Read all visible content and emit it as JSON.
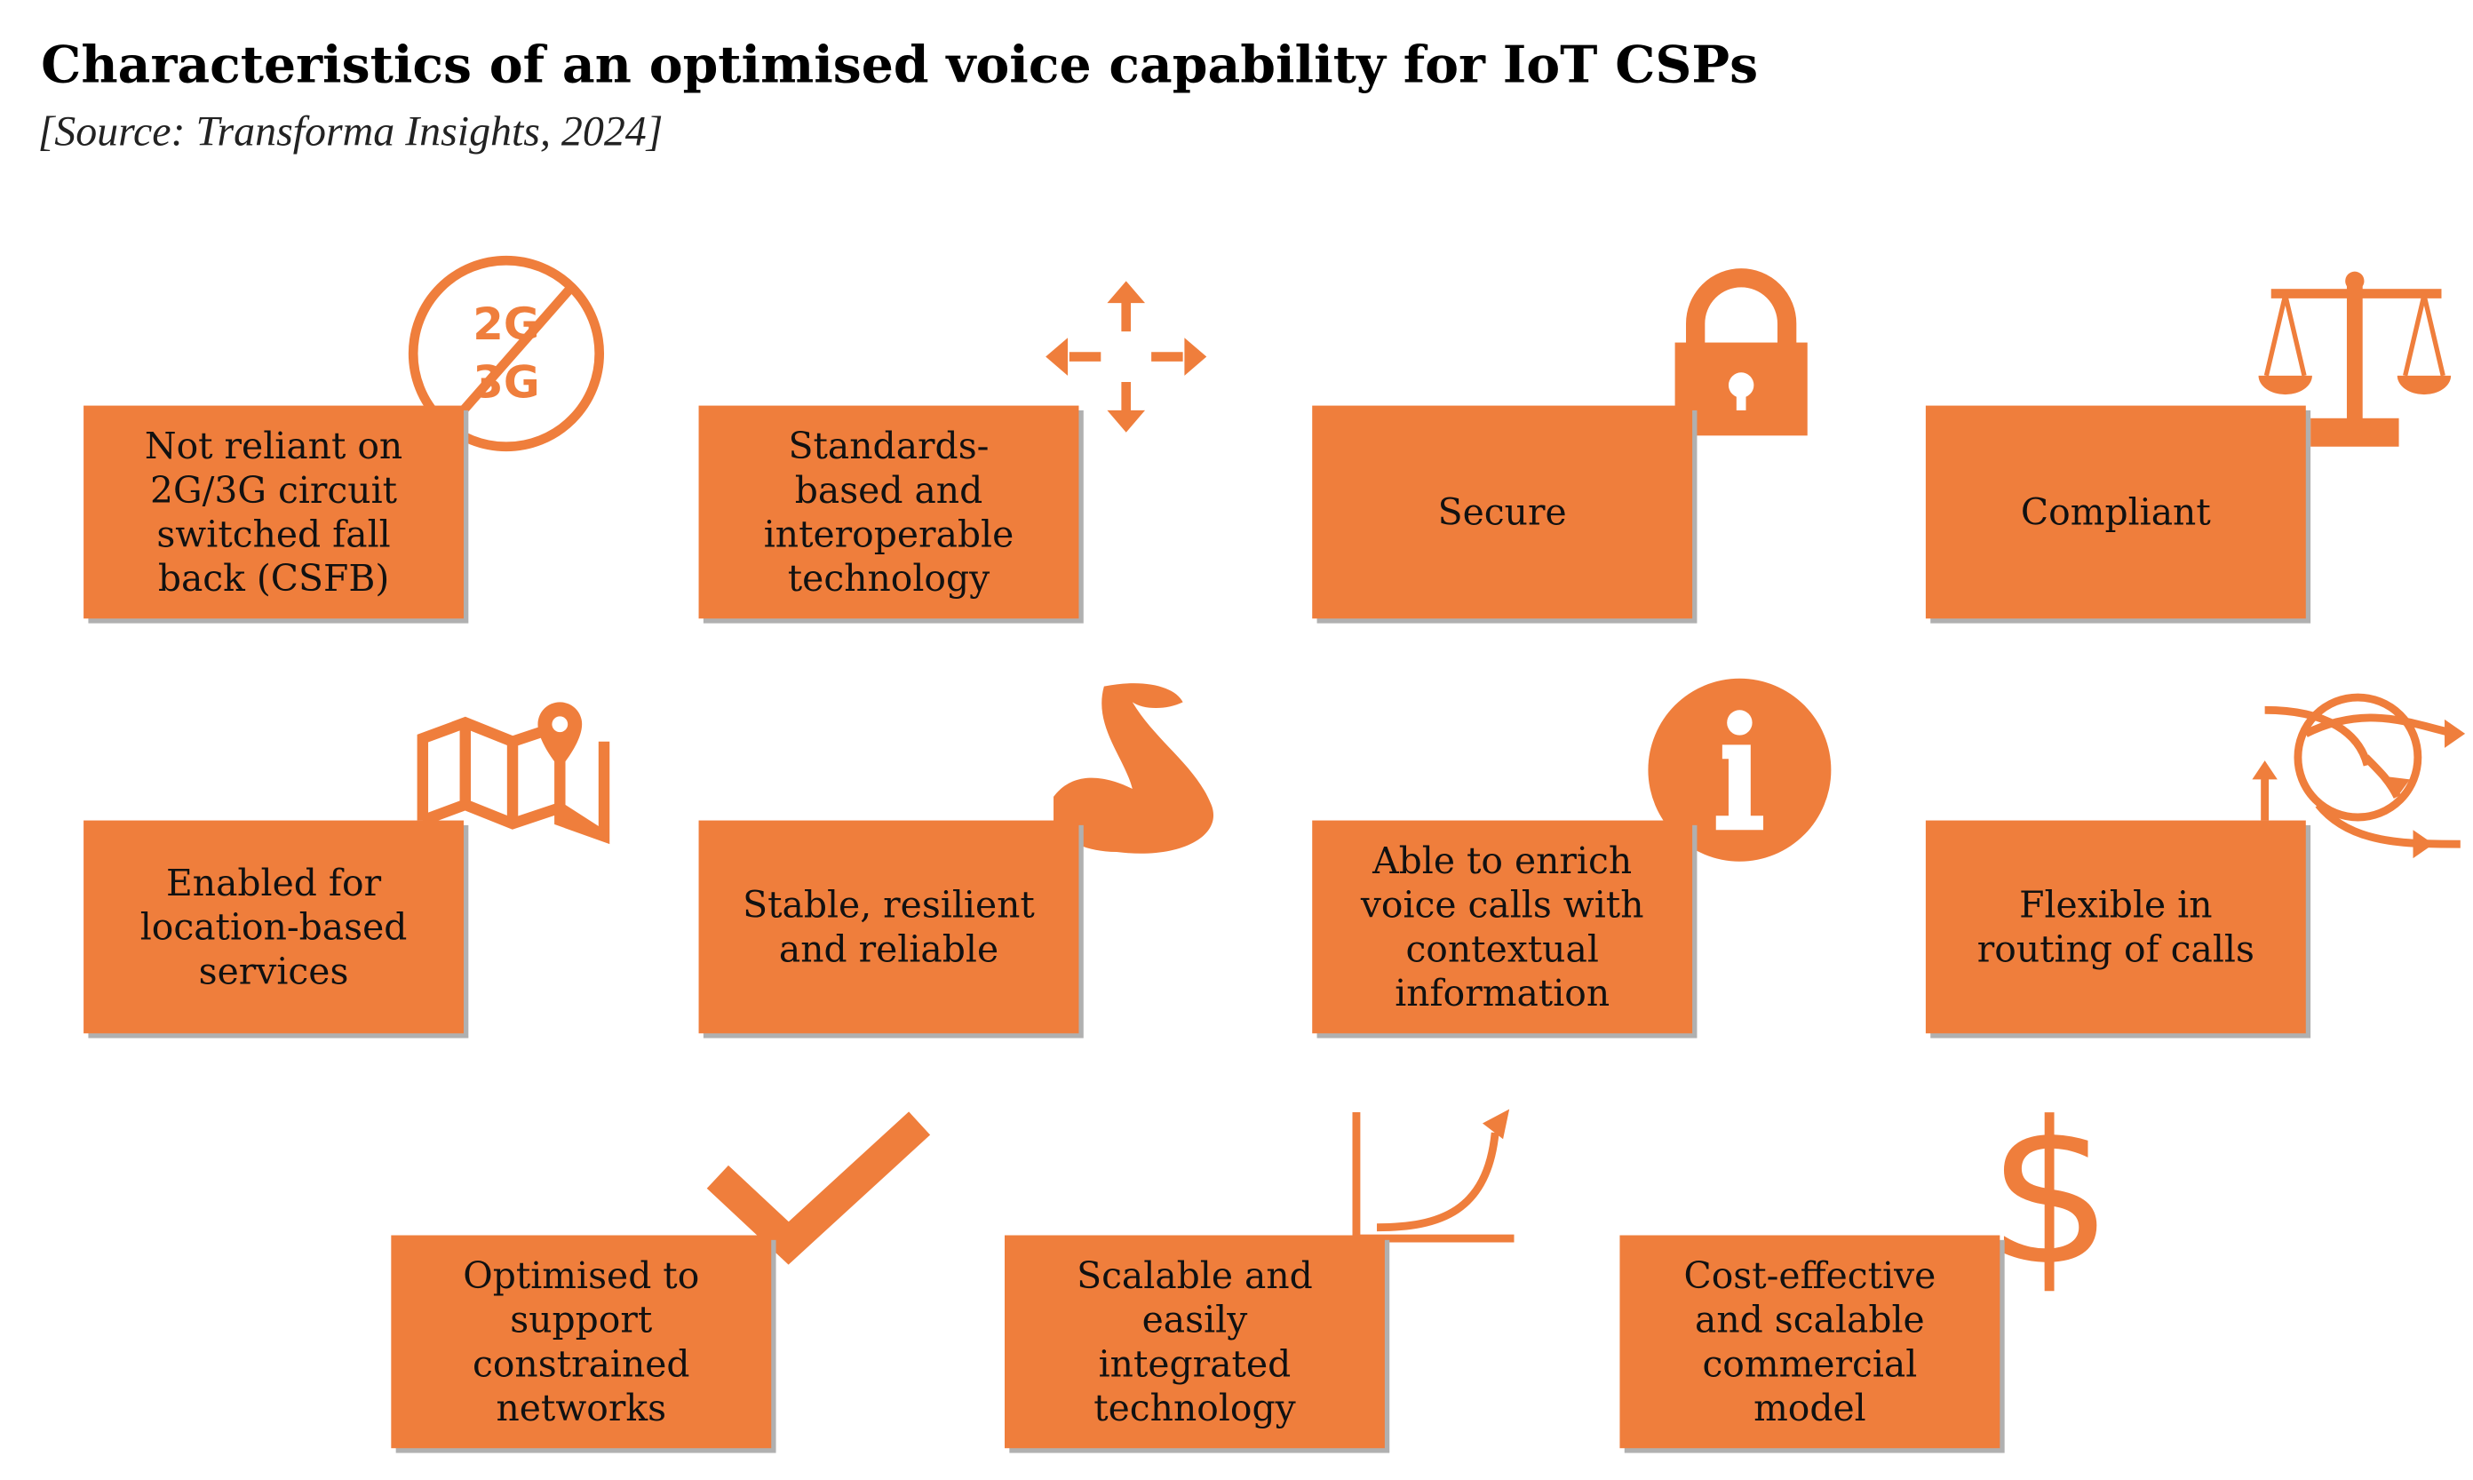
{
  "header": {
    "title": "Characteristics of an optimised voice capability for IoT CSPs",
    "source": "[Source: Transforma Insights, 2024]"
  },
  "icon_texts": [
    "2G",
    "3G"
  ],
  "items": [
    {
      "lines": [
        "Not reliant on",
        "2G/3G circuit",
        "switched fall",
        "back (CSFB)"
      ]
    },
    {
      "lines": [
        "Standards-",
        "based and",
        "interoperable",
        "technology"
      ]
    },
    {
      "lines": [
        "Secure"
      ]
    },
    {
      "lines": [
        "Compliant"
      ]
    },
    {
      "lines": [
        "Enabled for",
        "location-based",
        "services"
      ]
    },
    {
      "lines": [
        "Stable, resilient",
        "and reliable"
      ]
    },
    {
      "lines": [
        "Able to enrich",
        "voice calls with",
        "contextual",
        "information"
      ]
    },
    {
      "lines": [
        "Flexible in",
        "routing of calls"
      ]
    },
    {
      "lines": [
        "Optimised to",
        "support",
        "constrained",
        "networks"
      ]
    },
    {
      "lines": [
        "Scalable and",
        "easily",
        "integrated",
        "technology"
      ]
    },
    {
      "lines": [
        "Cost-effective",
        "and scalable",
        "commercial",
        "model"
      ]
    }
  ]
}
